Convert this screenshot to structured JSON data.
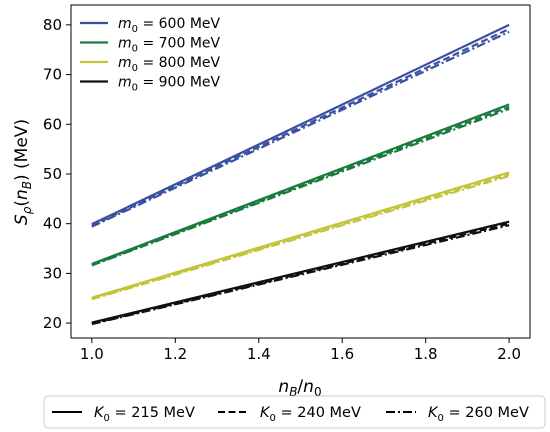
{
  "chart_data": {
    "type": "line",
    "xlabel": "n_B/n_0",
    "ylabel": "S_ρ(n_B) (MeV)",
    "xlim": [
      0.95,
      2.05
    ],
    "ylim": [
      17,
      84
    ],
    "xticks": [
      1.0,
      1.2,
      1.4,
      1.6,
      1.8,
      2.0
    ],
    "xtick_labels": [
      "1.0",
      "1.2",
      "1.4",
      "1.6",
      "1.8",
      "2.0"
    ],
    "yticks": [
      20,
      30,
      40,
      50,
      60,
      70,
      80
    ],
    "ytick_labels": [
      "20",
      "30",
      "40",
      "50",
      "60",
      "70",
      "80"
    ],
    "grid": false,
    "legend_placement": "top-left",
    "series": [
      {
        "name": "m_0 = 600 MeV",
        "color": "#3a50a0",
        "lines": [
          {
            "style": "solid",
            "x": [
              1.0,
              2.0
            ],
            "y": [
              39.9,
              80.0
            ]
          },
          {
            "style": "dashed",
            "x": [
              1.0,
              2.0
            ],
            "y": [
              39.6,
              79.2
            ]
          },
          {
            "style": "dashdot",
            "x": [
              1.0,
              2.0
            ],
            "y": [
              39.4,
              78.6
            ]
          }
        ]
      },
      {
        "name": "m_0 = 700 MeV",
        "color": "#1a7a3c",
        "lines": [
          {
            "style": "solid",
            "x": [
              1.0,
              2.0
            ],
            "y": [
              31.9,
              64.0
            ]
          },
          {
            "style": "dashed",
            "x": [
              1.0,
              2.0
            ],
            "y": [
              31.7,
              63.5
            ]
          },
          {
            "style": "dashdot",
            "x": [
              1.0,
              2.0
            ],
            "y": [
              31.6,
              63.1
            ]
          }
        ]
      },
      {
        "name": "m_0 = 800 MeV",
        "color": "#c4c43a",
        "lines": [
          {
            "style": "solid",
            "x": [
              1.0,
              2.0
            ],
            "y": [
              25.1,
              50.3
            ]
          },
          {
            "style": "dashed",
            "x": [
              1.0,
              2.0
            ],
            "y": [
              24.9,
              49.9
            ]
          },
          {
            "style": "dashdot",
            "x": [
              1.0,
              2.0
            ],
            "y": [
              24.8,
              49.6
            ]
          }
        ]
      },
      {
        "name": "m_0 = 900 MeV",
        "color": "#111111",
        "lines": [
          {
            "style": "solid",
            "x": [
              1.0,
              2.0
            ],
            "y": [
              20.1,
              40.4
            ]
          },
          {
            "style": "dashed",
            "x": [
              1.0,
              2.0
            ],
            "y": [
              19.9,
              40.0
            ]
          },
          {
            "style": "dashdot",
            "x": [
              1.0,
              2.0
            ],
            "y": [
              19.8,
              39.7
            ]
          }
        ]
      }
    ],
    "linestyle_legend": [
      {
        "label": "K_0 = 215 MeV",
        "style": "solid"
      },
      {
        "label": "K_0 = 240 MeV",
        "style": "dashed"
      },
      {
        "label": "K_0 = 260 MeV",
        "style": "dashdot"
      }
    ]
  }
}
